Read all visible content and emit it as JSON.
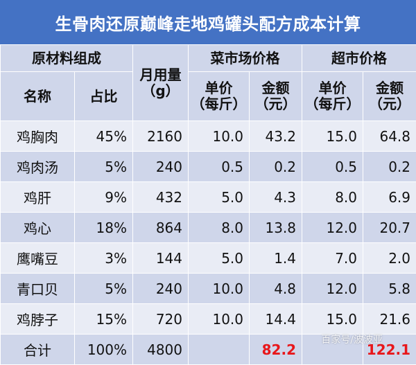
{
  "title": "生骨肉还原巅峰走地鸡罐头配方成本计算",
  "headers": {
    "ingredients_group": "原材料组成",
    "name": "名称",
    "ratio": "占比",
    "monthly_usage_line1": "月用量",
    "monthly_usage_line2": "（g）",
    "market_group": "菜市场价格",
    "supermarket_group": "超市价格",
    "unit_price_line1": "单价",
    "unit_price_line2": "（每斤）",
    "amount_line1": "金额",
    "amount_line2": "（元）"
  },
  "rows": [
    {
      "name": "鸡胸肉",
      "ratio": "45%",
      "usage": "2160",
      "market_price": "10.0",
      "market_amount": "43.2",
      "super_price": "15.0",
      "super_amount": "64.8"
    },
    {
      "name": "鸡肉汤",
      "ratio": "5%",
      "usage": "240",
      "market_price": "0.5",
      "market_amount": "0.2",
      "super_price": "0.5",
      "super_amount": "0.2"
    },
    {
      "name": "鸡肝",
      "ratio": "9%",
      "usage": "432",
      "market_price": "5.0",
      "market_amount": "4.3",
      "super_price": "8.0",
      "super_amount": "6.9"
    },
    {
      "name": "鸡心",
      "ratio": "18%",
      "usage": "864",
      "market_price": "8.0",
      "market_amount": "13.8",
      "super_price": "12.0",
      "super_amount": "20.7"
    },
    {
      "name": "鹰嘴豆",
      "ratio": "3%",
      "usage": "144",
      "market_price": "5.0",
      "market_amount": "1.4",
      "super_price": "7.0",
      "super_amount": "2.0"
    },
    {
      "name": "青口贝",
      "ratio": "5%",
      "usage": "240",
      "market_price": "10.0",
      "market_amount": "4.8",
      "super_price": "12.0",
      "super_amount": "5.8"
    },
    {
      "name": "鸡脖子",
      "ratio": "15%",
      "usage": "720",
      "market_price": "10.0",
      "market_amount": "14.4",
      "super_price": "15.0",
      "super_amount": "21.6"
    }
  ],
  "total": {
    "label": "合计",
    "ratio": "100%",
    "usage": "4800",
    "market_amount": "82.2",
    "super_amount": "122.1"
  },
  "watermark": "百家号/波波亚",
  "colors": {
    "title_bg": "#4472c4",
    "row_dark": "#cfd6ea",
    "row_light": "#e9ecf5",
    "total_red": "#e8161a"
  }
}
